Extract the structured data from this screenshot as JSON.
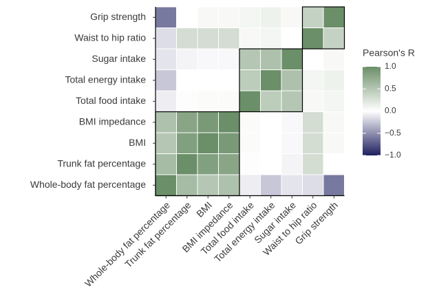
{
  "chart_data": {
    "type": "heatmap",
    "x_categories": [
      "Whole-body fat percentage",
      "Trunk fat percentage",
      "BMI",
      "BMI impedance",
      "Total food intake",
      "Total energy intake",
      "Sugar intake",
      "Waist to hip ratio",
      "Grip strength"
    ],
    "y_categories": [
      "Grip strength",
      "Waist to hip ratio",
      "Sugar intake",
      "Total energy intake",
      "Total food intake",
      "BMI impedance",
      "BMI",
      "Trunk fat percentage",
      "Whole-body fat percentage"
    ],
    "values": [
      [
        -0.6,
        0.0,
        0.05,
        0.05,
        0.08,
        0.12,
        0.05,
        0.4,
        1
      ],
      [
        -0.15,
        0.3,
        0.3,
        0.3,
        0.05,
        0.08,
        0.0,
        1,
        0.4
      ],
      [
        -0.12,
        -0.05,
        -0.03,
        -0.03,
        0.5,
        0.55,
        1,
        0.0,
        0.05
      ],
      [
        -0.25,
        0.0,
        0.0,
        0.0,
        0.45,
        1,
        0.55,
        0.08,
        0.12
      ],
      [
        -0.08,
        0.02,
        0.03,
        0.03,
        1,
        0.45,
        0.5,
        0.05,
        0.08
      ],
      [
        0.55,
        0.8,
        0.9,
        1,
        0.03,
        0.0,
        -0.03,
        0.3,
        0.05
      ],
      [
        0.5,
        0.85,
        1,
        0.9,
        0.03,
        0.0,
        -0.03,
        0.3,
        0.05
      ],
      [
        0.6,
        1,
        0.85,
        0.8,
        0.02,
        0.0,
        -0.05,
        0.3,
        0.0
      ],
      [
        1,
        0.6,
        0.5,
        0.55,
        -0.08,
        -0.25,
        -0.12,
        -0.15,
        -0.6
      ]
    ],
    "legend_title": "Pearson's R",
    "colorbar_lim": [
      -1,
      1
    ],
    "colorbar_ticks": [
      {
        "value": 1,
        "label": "1.0"
      },
      {
        "value": 0.5,
        "label": "0.5"
      },
      {
        "value": 0,
        "label": "0.0"
      },
      {
        "value": -0.5,
        "label": "−0.5"
      },
      {
        "value": -1,
        "label": "−1.0"
      }
    ],
    "colors": {
      "low": "#1e1f5e",
      "mid": "#ffffff",
      "high": "#6b8f68"
    }
  }
}
